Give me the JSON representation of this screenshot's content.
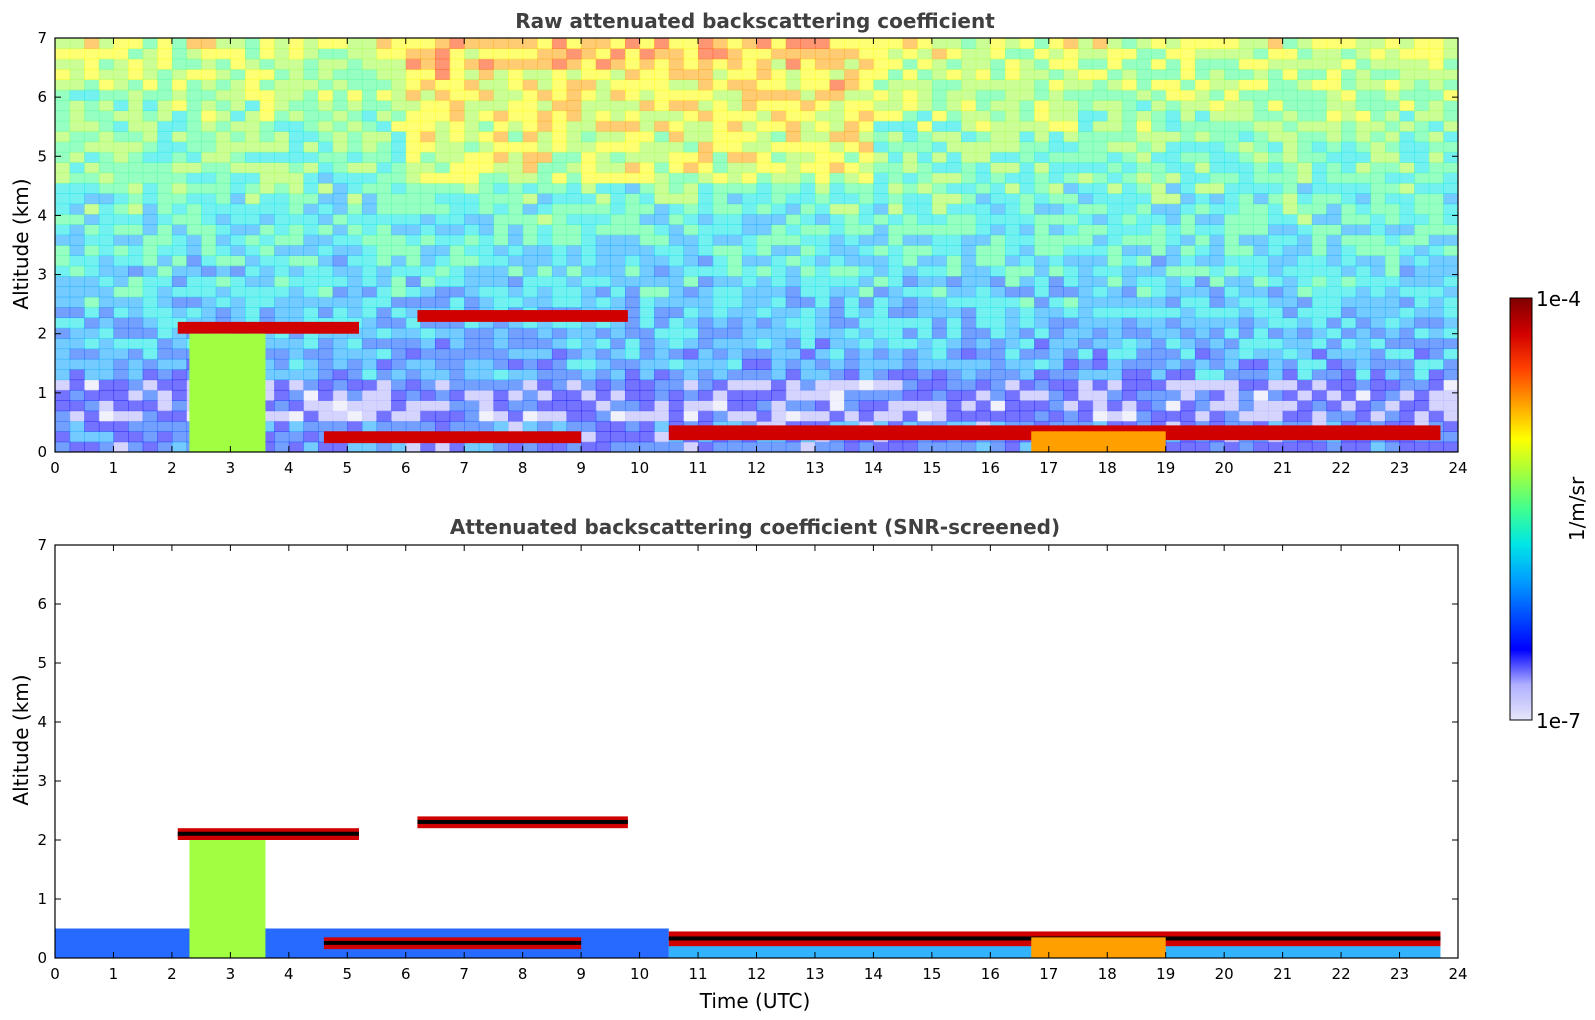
{
  "chart_data": [
    {
      "type": "heatmap",
      "title": "Raw attenuated backscattering coefficient",
      "xlabel": "",
      "ylabel": "Altitude (km)",
      "xlim": [
        0,
        24
      ],
      "ylim": [
        0,
        7
      ],
      "xticks": [
        "0",
        "1",
        "2",
        "3",
        "4",
        "5",
        "6",
        "7",
        "8",
        "9",
        "10",
        "11",
        "12",
        "13",
        "14",
        "15",
        "16",
        "17",
        "18",
        "19",
        "20",
        "21",
        "22",
        "23",
        "24"
      ],
      "yticks": [
        "0",
        "1",
        "2",
        "3",
        "4",
        "5",
        "6",
        "7"
      ],
      "layers": [
        {
          "feature": "upper cloud layer",
          "t0": 2.1,
          "t1": 5.2,
          "alt0": 2.0,
          "alt1": 2.2,
          "intensity": 0.95
        },
        {
          "feature": "upper cloud layer",
          "t0": 6.2,
          "t1": 9.8,
          "alt0": 2.2,
          "alt1": 2.4,
          "intensity": 0.95
        },
        {
          "feature": "low cloud layer",
          "t0": 4.6,
          "t1": 9.0,
          "alt0": 0.15,
          "alt1": 0.35,
          "intensity": 0.95
        },
        {
          "feature": "low cloud layer",
          "t0": 10.5,
          "t1": 23.7,
          "alt0": 0.2,
          "alt1": 0.45,
          "intensity": 0.95
        },
        {
          "feature": "precipitation",
          "t0": 2.3,
          "t1": 3.6,
          "alt0": 0.0,
          "alt1": 2.0,
          "intensity": 0.6
        },
        {
          "feature": "enhanced layer",
          "t0": 16.7,
          "t1": 19.0,
          "alt0": 0.0,
          "alt1": 0.35,
          "intensity": 0.75
        }
      ]
    },
    {
      "type": "heatmap",
      "title": "Attenuated backscattering coefficient (SNR-screened)",
      "xlabel": "Time (UTC)",
      "ylabel": "Altitude (km)",
      "xlim": [
        0,
        24
      ],
      "ylim": [
        0,
        7
      ],
      "xticks": [
        "0",
        "1",
        "2",
        "3",
        "4",
        "5",
        "6",
        "7",
        "8",
        "9",
        "10",
        "11",
        "12",
        "13",
        "14",
        "15",
        "16",
        "17",
        "18",
        "19",
        "20",
        "21",
        "22",
        "23",
        "24"
      ],
      "yticks": [
        "0",
        "1",
        "2",
        "3",
        "4",
        "5",
        "6",
        "7"
      ],
      "layers": [
        {
          "feature": "upper cloud layer",
          "t0": 2.1,
          "t1": 5.2,
          "alt0": 2.0,
          "alt1": 2.2,
          "intensity": 0.95
        },
        {
          "feature": "upper cloud layer",
          "t0": 6.2,
          "t1": 9.8,
          "alt0": 2.2,
          "alt1": 2.4,
          "intensity": 0.95
        },
        {
          "feature": "low cloud layer",
          "t0": 4.6,
          "t1": 9.0,
          "alt0": 0.15,
          "alt1": 0.35,
          "intensity": 0.95
        },
        {
          "feature": "low cloud layer",
          "t0": 10.5,
          "t1": 23.7,
          "alt0": 0.2,
          "alt1": 0.45,
          "intensity": 0.95
        },
        {
          "feature": "precipitation",
          "t0": 2.3,
          "t1": 3.6,
          "alt0": 0.0,
          "alt1": 2.0,
          "intensity": 0.6
        },
        {
          "feature": "enhanced layer",
          "t0": 16.7,
          "t1": 19.0,
          "alt0": 0.0,
          "alt1": 0.35,
          "intensity": 0.75
        }
      ]
    }
  ],
  "colorbar": {
    "label": "1/m/sr",
    "max_label": "1e-4",
    "min_label": "1e-7",
    "range": [
      1e-07,
      0.0001
    ],
    "scale": "log",
    "colormap": [
      "#e6e6fa",
      "#b0b0ff",
      "#0000ff",
      "#0050ff",
      "#00a0ff",
      "#00e6e6",
      "#40ff90",
      "#a0ff40",
      "#ffff00",
      "#ffa000",
      "#ff4000",
      "#d00000",
      "#7f0000"
    ]
  }
}
